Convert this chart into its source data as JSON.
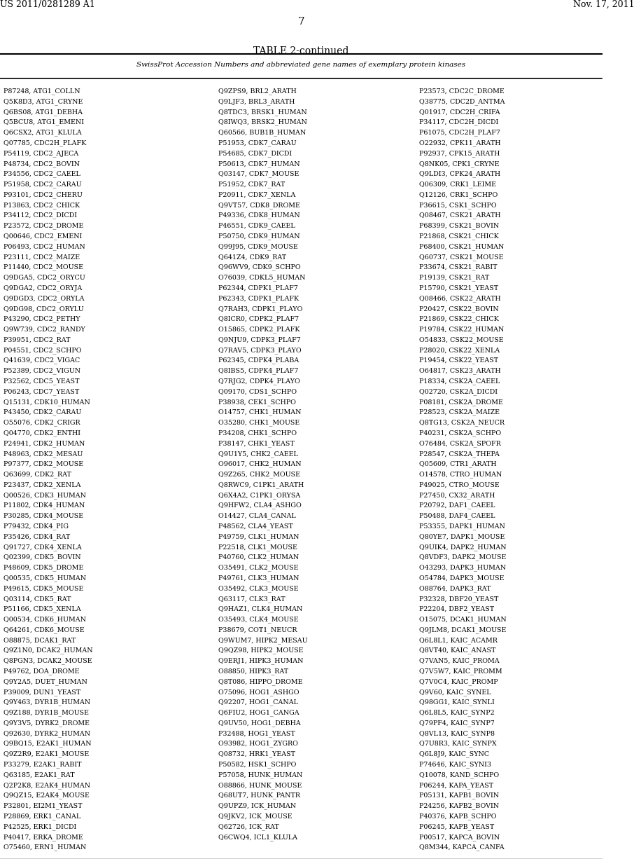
{
  "patent_number": "US 2011/0281289 A1",
  "date": "Nov. 17, 2011",
  "page_number": "7",
  "table_title": "TABLE 2-continued",
  "table_header": "SwissProt Accession Numbers and abbreviated gene names of exemplary protein kinases",
  "columns": [
    [
      "P87248, ATG1_COLLN",
      "Q5K8D3, ATG1_CRYNE",
      "Q6BS08, ATG1_DEBHA",
      "Q5BCU8, ATG1_EMENI",
      "Q6CSX2, ATG1_KLULA",
      "Q07785, CDC2H_PLAFK",
      "P54119, CDC2_AJECA",
      "P48734, CDC2_BOVIN",
      "P34556, CDC2_CAEEL",
      "P51958, CDC2_CARAU",
      "P93101, CDC2_CHERU",
      "P13863, CDC2_CHICK",
      "P34112, CDC2_DICDI",
      "P23572, CDC2_DROME",
      "Q00646, CDC2_EMENI",
      "P06493, CDC2_HUMAN",
      "P23111, CDC2_MAIZE",
      "P11440, CDC2_MOUSE",
      "Q9DGA5, CDC2_ORYCU",
      "Q9DGA2, CDC2_ORYJA",
      "Q9DGD3, CDC2_ORYLA",
      "Q9DG98, CDC2_ORYLU",
      "P43290, CDC2_PETHY",
      "Q9W739, CDC2_RANDY",
      "P39951, CDC2_RAT",
      "P04551, CDC2_SCHPO",
      "Q41639, CDC2_VIGAC",
      "P52389, CDC2_VIGUN",
      "P32562, CDC5_YEAST",
      "P06243, CDC7_YEAST",
      "Q15131, CDK10_HUMAN",
      "P43450, CDK2_CARAU",
      "O55076, CDK2_CRIGR",
      "Q04770, CDK2_ENTHI",
      "P24941, CDK2_HUMAN",
      "P48963, CDK2_MESAU",
      "P97377, CDK2_MOUSE",
      "Q63699, CDK2_RAT",
      "P23437, CDK2_XENLA",
      "Q00526, CDK3_HUMAN",
      "P11802, CDK4_HUMAN",
      "P30285, CDK4_MOUSE",
      "P79432, CDK4_PIG",
      "P35426, CDK4_RAT",
      "Q91727, CDK4_XENLA",
      "Q02399, CDK5_BOVIN",
      "P48609, CDK5_DROME",
      "Q00535, CDK5_HUMAN",
      "P49615, CDK5_MOUSE",
      "Q03114, CDK5_RAT",
      "P51166, CDK5_XENLA",
      "Q00534, CDK6_HUMAN",
      "Q64261, CDK6_MOUSE",
      "O88875, DCAK1_RAT",
      "Q9Z1N0, DCAK2_HUMAN",
      "Q8PGN3, DCAK2_MOUSE",
      "P49762, DOA_DROME",
      "Q9Y2A5, DUET_HUMAN",
      "P39009, DUN1_YEAST",
      "Q9Y463, DYR1B_HUMAN",
      "Q9Z188, DYR1B_MOUSE",
      "Q9Y3V5, DYRK2_DROME",
      "Q92630, DYRK2_HUMAN",
      "Q9BQ15, E2AK1_HUMAN",
      "Q9Z2R9, E2AK1_MOUSE",
      "P33279, E2AK1_RABIT",
      "Q63185, E2AK1_RAT",
      "Q2P2K8, E2AK4_HUMAN",
      "Q9QZ15, E2AK4_MOUSE",
      "P32801, EI2M1_YEAST",
      "P28869, ERK1_CANAL",
      "P42525, ERK1_DICDI",
      "P40417, ERKA_DROME",
      "O75460, ERN1_HUMAN"
    ],
    [
      "Q9ZPS9, BRL2_ARATH",
      "Q9LJF3, BRL3_ARATH",
      "Q8TDC3, BRSK1_HUMAN",
      "Q8IWQ3, BRSK2_HUMAN",
      "Q60566, BUB1B_HUMAN",
      "P51953, CDK7_CARAU",
      "P54685, CDK7_DICDI",
      "P50613, CDK7_HUMAN",
      "Q03147, CDK7_MOUSE",
      "P51952, CDK7_RAT",
      "P20911, CDK7_XENLA",
      "Q9VT57, CDK8_DROME",
      "P49336, CDK8_HUMAN",
      "P46551, CDK9_CAEEL",
      "P50750, CDK9_HUMAN",
      "Q99J95, CDK9_MOUSE",
      "Q641Z4, CDK9_RAT",
      "Q96WV9, CDK9_SCHPO",
      "O76039, CDKL5_HUMAN",
      "P62344, CDPK1_PLAF7",
      "P62343, CDPK1_PLAFK",
      "Q7RAH3, CDPK1_PLAYO",
      "Q8ICR0, CDPK2_PLAF7",
      "O15865, CDPK2_PLAFK",
      "Q9NJU9, CDPK3_PLAF7",
      "Q7RAV5, CDPK3_PLAYO",
      "P62345, CDPK4_PLABA",
      "Q8IBS5, CDPK4_PLAF7",
      "Q7RJG2, CDPK4_PLAYO",
      "Q09170, CDS1_SCHPO",
      "P38938, CEK1_SCHPO",
      "O14757, CHK1_HUMAN",
      "O35280, CHK1_MOUSE",
      "P34208, CHK1_SCHPO",
      "P38147, CHK1_YEAST",
      "Q9U1Y5, CHK2_CAEEL",
      "O96017, CHK2_HUMAN",
      "Q9Z265, CHK2_MOUSE",
      "Q8RWC9, C1PK1_ARATH",
      "Q6X4A2, C1PK1_ORYSA",
      "Q9HFW2, CLA4_ASHGO",
      "O14427, CLA4_CANAL",
      "P48562, CLA4_YEAST",
      "P49759, CLK1_HUMAN",
      "P22518, CLK1_MOUSE",
      "P40760, CLK2_HUMAN",
      "O35491, CLK2_MOUSE",
      "P49761, CLK3_HUMAN",
      "O35492, CLK3_MOUSE",
      "Q63117, CLK3_RAT",
      "Q9HAZ1, CLK4_HUMAN",
      "O35493, CLK4_MOUSE",
      "P38679, COT1_NEUCR",
      "Q9WUM7, HIPK2_MESAU",
      "Q9QZ98, HIPK2_MOUSE",
      "Q9ERJ1, HIPK3_HUMAN",
      "O88850, HIPK3_RAT",
      "Q8T086, HIPPO_DROME",
      "O75096, HOG1_ASHGO",
      "Q92207, HOG1_CANAL",
      "Q6FIU2, HOG1_CANGA",
      "Q9UV50, HOG1_DEBHA",
      "P32488, HOG1_YEAST",
      "O93982, HOG1_ZYGRO",
      "Q08732, HRK1_YEAST",
      "P50582, HSK1_SCHPO",
      "P57058, HUNK_HUMAN",
      "O88866, HUNK_MOUSE",
      "Q68UT7, HUNK_PANTR",
      "Q9UPZ9, ICK_HUMAN",
      "Q9JKV2, ICK_MOUSE",
      "Q62726, ICK_RAT",
      "Q6CWQ4, ICL1_KLULA"
    ],
    [
      "P23573, CDC2C_DROME",
      "Q38775, CDC2D_ANTMA",
      "Q01917, CDC2H_CRIFA",
      "P34117, CDC2H_DICDI",
      "P61075, CDC2H_PLAF7",
      "O22932, CPK11_ARATH",
      "P92937, CPK15_ARATH",
      "Q8NK05, CPK1_CRYNE",
      "Q9LDI3, CPK24_ARATH",
      "Q06309, CRK1_LEIME",
      "Q12126, CRK1_SCHPO",
      "P36615, CSK1_SCHPO",
      "Q08467, CSK21_ARATH",
      "P68399, CSK21_BOVIN",
      "P21868, CSK21_CHICK",
      "P68400, CSK21_HUMAN",
      "Q60737, CSK21_MOUSE",
      "P33674, CSK21_RABIT",
      "P19139, CSK21_RAT",
      "P15790, CSK21_YEAST",
      "Q08466, CSK22_ARATH",
      "P20427, CSK22_BOVIN",
      "P21869, CSK22_CHICK",
      "P19784, CSK22_HUMAN",
      "O54833, CSK22_MOUSE",
      "P28020, CSK22_XENLA",
      "P19454, CSK22_YEAST",
      "O64817, CSK23_ARATH",
      "P18334, CSK2A_CAEEL",
      "Q02720, CSK2A_DICDI",
      "P08181, CSK2A_DROME",
      "P28523, CSK2A_MAIZE",
      "Q8TG13, CSK2A_NEUCR",
      "P40231, CSK2A_SCHPO",
      "O76484, CSK2A_SPOFR",
      "P28547, CSK2A_THEPA",
      "Q05609, CTR1_ARATH",
      "O14578, CTRO_HUMAN",
      "P49025, CTRO_MOUSE",
      "P27450, CX32_ARATH",
      "P20792, DAF1_CAEEL",
      "P50488, DAF4_CAEEL",
      "P53355, DAPK1_HUMAN",
      "Q80YE7, DAPK1_MOUSE",
      "Q9UIK4, DAPK2_HUMAN",
      "Q8VDF3, DAPK2_MOUSE",
      "O43293, DAPK3_HUMAN",
      "O54784, DAPK3_MOUSE",
      "O88764, DAPK3_RAT",
      "P32328, DBF20_YEAST",
      "P22204, DBF2_YEAST",
      "O15075, DCAK1_HUMAN",
      "Q9JLM8, DCAK1_MOUSE",
      "Q6L8L1, KAIC_ACAMR",
      "Q8VT40, KAIC_ANAST",
      "Q7VAN5, KAIC_PROMA",
      "Q7V5W7, KAIC_PROMM",
      "Q7V0C4, KAIC_PROMP",
      "Q9V60, KAIC_SYNEL",
      "Q98GG1, KAIC_SYNLI",
      "Q6L8L5, KAIC_SYNP2",
      "Q79PF4, KAIC_SYNP7",
      "Q8VL13, KAIC_SYNP8",
      "Q7U8R3, KAIC_SYNPX",
      "Q6L8J9, KAIC_SYNC",
      "P74646, KAIC_SYNI3",
      "Q10078, KAND_SCHPO",
      "P06244, KAPA_YEAST",
      "P05131, KAPB1_BOVIN",
      "P24256, KAPB2_BOVIN",
      "P40376, KAPB_SCHPO",
      "P06245, KAPB_YEAST",
      "P00517, KAPCA_BOVIN",
      "Q8M344, KAPCA_CANFA"
    ]
  ]
}
